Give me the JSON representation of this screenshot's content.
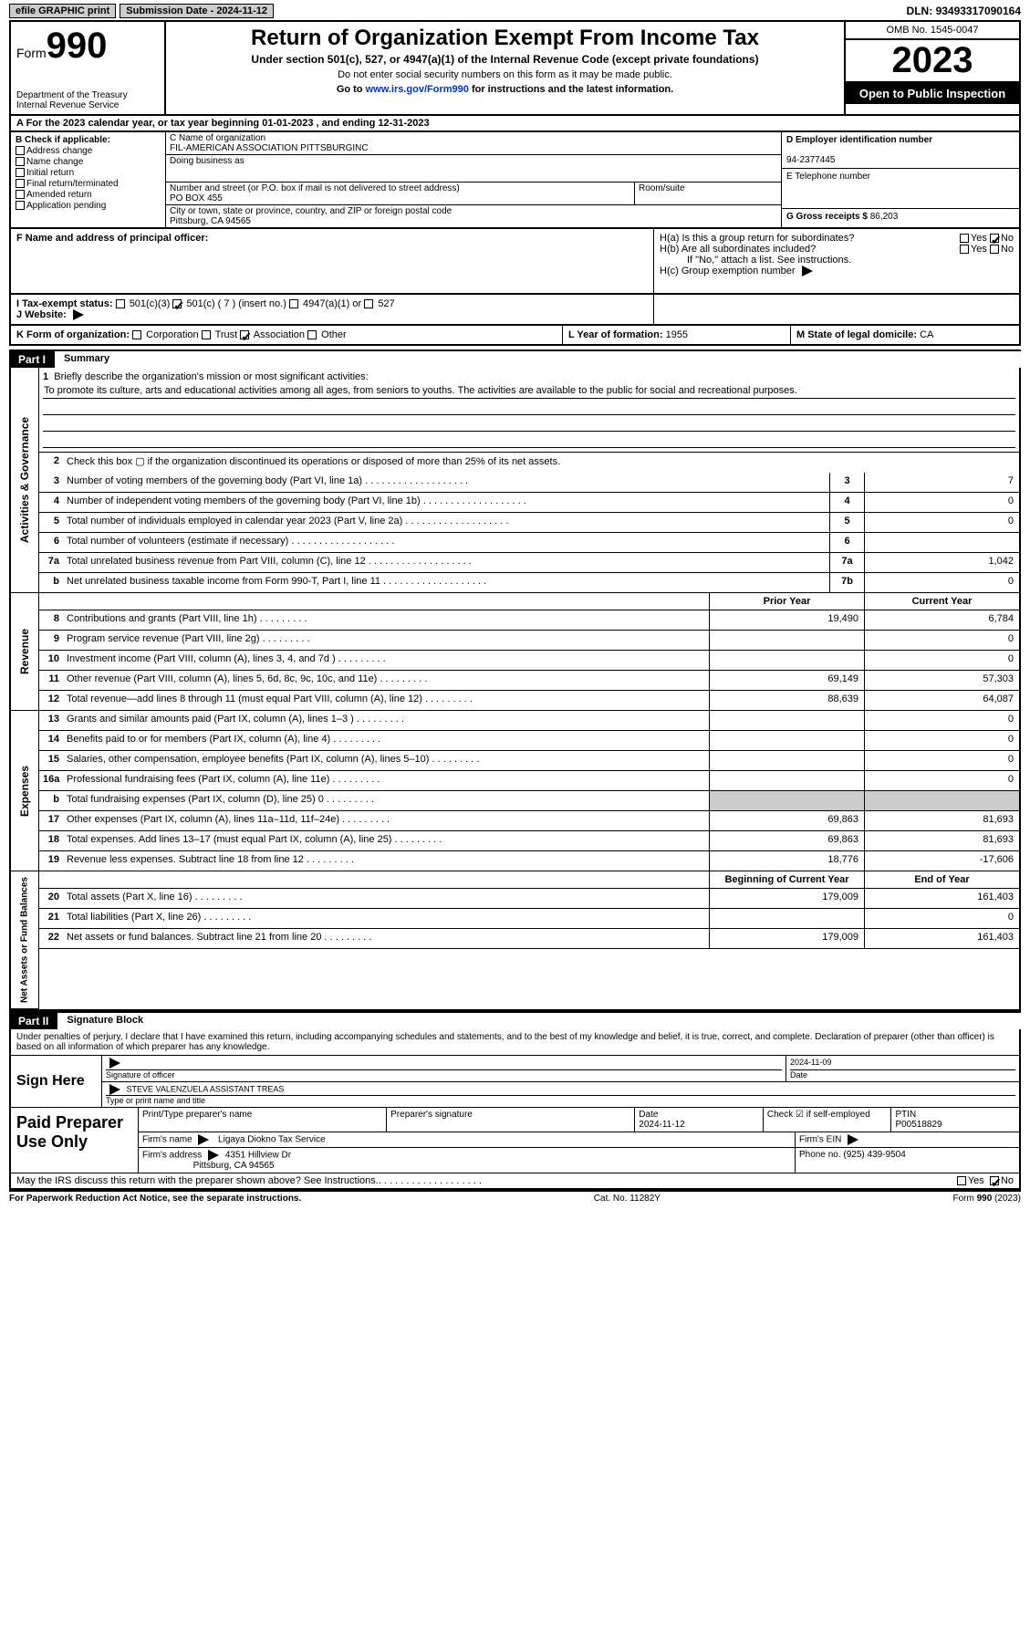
{
  "topbar": {
    "efile": "efile GRAPHIC print",
    "submission": "Submission Date - 2024-11-12",
    "dln_label": "DLN:",
    "dln": "93493317090164"
  },
  "header": {
    "form_word": "Form",
    "form_no": "990",
    "dept": "Department of the Treasury\nInternal Revenue Service",
    "title": "Return of Organization Exempt From Income Tax",
    "subtitle": "Under section 501(c), 527, or 4947(a)(1) of the Internal Revenue Code (except private foundations)",
    "warn": "Do not enter social security numbers on this form as it may be made public.",
    "goto_pre": "Go to ",
    "goto_link": "www.irs.gov/Form990",
    "goto_post": " for instructions and the latest information.",
    "omb": "OMB No. 1545-0047",
    "year": "2023",
    "public": "Open to Public Inspection"
  },
  "lineA": {
    "pre": "A For the 2023 calendar year, or tax year beginning ",
    "begin": "01-01-2023",
    "mid": " , and ending ",
    "end": "12-31-2023"
  },
  "boxB": {
    "label": "B Check if applicable:",
    "items": [
      "Address change",
      "Name change",
      "Initial return",
      "Final return/terminated",
      "Amended return",
      "Application pending"
    ]
  },
  "boxC": {
    "name_label": "C Name of organization",
    "name": "FIL-AMERICAN ASSOCIATION PITTSBURGINC",
    "dba_label": "Doing business as",
    "dba": "",
    "street_label": "Number and street (or P.O. box if mail is not delivered to street address)",
    "street": "PO BOX 455",
    "room_label": "Room/suite",
    "room": "",
    "city_label": "City or town, state or province, country, and ZIP or foreign postal code",
    "city": "Pittsburg, CA  94565"
  },
  "boxD": {
    "label": "D Employer identification number",
    "value": "94-2377445"
  },
  "boxE": {
    "label": "E Telephone number",
    "value": ""
  },
  "boxG": {
    "label": "G Gross receipts $",
    "value": "86,203"
  },
  "rowF": {
    "label": "F  Name and address of principal officer:"
  },
  "rowH": {
    "a": "H(a)  Is this a group return for subordinates?",
    "b": "H(b)  Are all subordinates included?",
    "note": "If \"No,\" attach a list. See instructions.",
    "c": "H(c)  Group exemption number",
    "yes": "Yes",
    "no": "No"
  },
  "rowI": {
    "label": "I   Tax-exempt status:",
    "o1": "501(c)(3)",
    "o2": "501(c) ( 7 ) (insert no.)",
    "o3": "4947(a)(1) or",
    "o4": "527"
  },
  "rowJ": {
    "label": "J   Website:",
    "arrow": "▶"
  },
  "rowK": {
    "label": "K Form of organization:",
    "o1": "Corporation",
    "o2": "Trust",
    "o3": "Association",
    "o4": "Other"
  },
  "rowL": {
    "label": "L Year of formation:",
    "value": "1955"
  },
  "rowM": {
    "label": "M State of legal domicile:",
    "value": "CA"
  },
  "part1": {
    "tag": "Part I",
    "title": "Summary"
  },
  "mission": {
    "num": "1",
    "label": "Briefly describe the organization's mission or most significant activities:",
    "text": "To promote its culture, arts and educational activities among all ages, from seniors to youths. The activities are available to the public for social and recreational purposes."
  },
  "line2": {
    "num": "2",
    "text": "Check this box ▢ if the organization discontinued its operations or disposed of more than 25% of its net assets."
  },
  "gov_rows": [
    {
      "n": "3",
      "desc": "Number of voting members of the governing body (Part VI, line 1a)",
      "box": "3",
      "val": "7"
    },
    {
      "n": "4",
      "desc": "Number of independent voting members of the governing body (Part VI, line 1b)",
      "box": "4",
      "val": "0"
    },
    {
      "n": "5",
      "desc": "Total number of individuals employed in calendar year 2023 (Part V, line 2a)",
      "box": "5",
      "val": "0"
    },
    {
      "n": "6",
      "desc": "Total number of volunteers (estimate if necessary)",
      "box": "6",
      "val": ""
    },
    {
      "n": "7a",
      "desc": "Total unrelated business revenue from Part VIII, column (C), line 12",
      "box": "7a",
      "val": "1,042"
    },
    {
      "n": "b",
      "desc": "Net unrelated business taxable income from Form 990-T, Part I, line 11",
      "box": "7b",
      "val": "0"
    }
  ],
  "rev_hdr": {
    "prior": "Prior Year",
    "curr": "Current Year"
  },
  "rev_rows": [
    {
      "n": "8",
      "desc": "Contributions and grants (Part VIII, line 1h)",
      "p": "19,490",
      "c": "6,784"
    },
    {
      "n": "9",
      "desc": "Program service revenue (Part VIII, line 2g)",
      "p": "",
      "c": "0"
    },
    {
      "n": "10",
      "desc": "Investment income (Part VIII, column (A), lines 3, 4, and 7d )",
      "p": "",
      "c": "0"
    },
    {
      "n": "11",
      "desc": "Other revenue (Part VIII, column (A), lines 5, 6d, 8c, 9c, 10c, and 11e)",
      "p": "69,149",
      "c": "57,303"
    },
    {
      "n": "12",
      "desc": "Total revenue—add lines 8 through 11 (must equal Part VIII, column (A), line 12)",
      "p": "88,639",
      "c": "64,087"
    }
  ],
  "exp_rows": [
    {
      "n": "13",
      "desc": "Grants and similar amounts paid (Part IX, column (A), lines 1–3 )",
      "p": "",
      "c": "0"
    },
    {
      "n": "14",
      "desc": "Benefits paid to or for members (Part IX, column (A), line 4)",
      "p": "",
      "c": "0"
    },
    {
      "n": "15",
      "desc": "Salaries, other compensation, employee benefits (Part IX, column (A), lines 5–10)",
      "p": "",
      "c": "0"
    },
    {
      "n": "16a",
      "desc": "Professional fundraising fees (Part IX, column (A), line 11e)",
      "p": "",
      "c": "0"
    },
    {
      "n": "b",
      "desc": "Total fundraising expenses (Part IX, column (D), line 25) 0",
      "p": "grey",
      "c": "grey"
    },
    {
      "n": "17",
      "desc": "Other expenses (Part IX, column (A), lines 11a–11d, 11f–24e)",
      "p": "69,863",
      "c": "81,693"
    },
    {
      "n": "18",
      "desc": "Total expenses. Add lines 13–17 (must equal Part IX, column (A), line 25)",
      "p": "69,863",
      "c": "81,693"
    },
    {
      "n": "19",
      "desc": "Revenue less expenses. Subtract line 18 from line 12",
      "p": "18,776",
      "c": "-17,606"
    }
  ],
  "net_hdr": {
    "prior": "Beginning of Current Year",
    "curr": "End of Year"
  },
  "net_rows": [
    {
      "n": "20",
      "desc": "Total assets (Part X, line 16)",
      "p": "179,009",
      "c": "161,403"
    },
    {
      "n": "21",
      "desc": "Total liabilities (Part X, line 26)",
      "p": "",
      "c": "0"
    },
    {
      "n": "22",
      "desc": "Net assets or fund balances. Subtract line 21 from line 20",
      "p": "179,009",
      "c": "161,403"
    }
  ],
  "vtabs": {
    "gov": "Activities & Governance",
    "rev": "Revenue",
    "exp": "Expenses",
    "net": "Net Assets or Fund Balances"
  },
  "part2": {
    "tag": "Part II",
    "title": "Signature Block"
  },
  "perjury": "Under penalties of perjury, I declare that I have examined this return, including accompanying schedules and statements, and to the best of my knowledge and belief, it is true, correct, and complete. Declaration of preparer (other than officer) is based on all information of which preparer has any knowledge.",
  "sign": {
    "label": "Sign Here",
    "sigof": "Signature of officer",
    "date": "2024-11-09",
    "name": "STEVE VALENZUELA  ASSISTANT TREAS",
    "typel": "Type or print name and title",
    "datel": "Date"
  },
  "paid": {
    "label": "Paid Preparer Use Only",
    "ppname_l": "Print/Type preparer's name",
    "ppname": "",
    "psig_l": "Preparer's signature",
    "pdate_l": "Date",
    "pdate": "2024-11-12",
    "check_l": "Check ☑ if self-employed",
    "ptin_l": "PTIN",
    "ptin": "P00518829",
    "firmn_l": "Firm's name",
    "firmn": "Ligaya Diokno Tax Service",
    "fein_l": "Firm's EIN",
    "faddr_l": "Firm's address",
    "faddr": "4351 Hillview Dr",
    "faddr2": "Pittsburg, CA  94565",
    "phone_l": "Phone no.",
    "phone": "(925) 439-9504"
  },
  "discuss": {
    "text": "May the IRS discuss this return with the preparer shown above? See Instructions.",
    "yes": "Yes",
    "no": "No"
  },
  "footer": {
    "left": "For Paperwork Reduction Act Notice, see the separate instructions.",
    "mid": "Cat. No. 11282Y",
    "right": "Form 990 (2023)"
  }
}
